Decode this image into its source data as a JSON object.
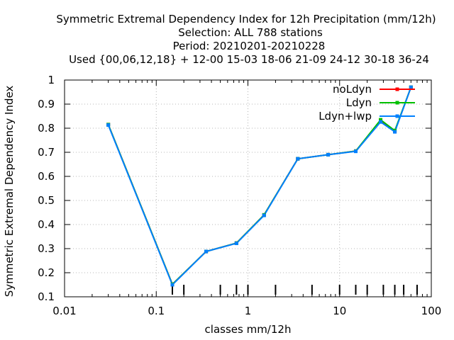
{
  "chart_data": {
    "type": "line",
    "title_lines": [
      "Symmetric Extremal Dependency Index  for 12h Precipitation (mm/12h)",
      "Selection: ALL    788 stations",
      "Period: 20210201-20210228",
      "Used {00,06,12,18} + 12-00 15-03 18-06 21-09 24-12 30-18 36-24"
    ],
    "xlabel": "classes mm/12h",
    "ylabel": "Symmetric Extremal Dependency Index",
    "xscale": "log",
    "xlim": [
      0.01,
      100
    ],
    "ylim": [
      0.1,
      1.0
    ],
    "xticks": [
      {
        "value": 0.01,
        "label": "0.01"
      },
      {
        "value": 0.1,
        "label": "0.1"
      },
      {
        "value": 1,
        "label": "1"
      },
      {
        "value": 10,
        "label": "10"
      },
      {
        "value": 100,
        "label": "100"
      }
    ],
    "yticks": [
      {
        "value": 0.1,
        "label": "0.1"
      },
      {
        "value": 0.2,
        "label": "0.2"
      },
      {
        "value": 0.3,
        "label": "0.3"
      },
      {
        "value": 0.4,
        "label": "0.4"
      },
      {
        "value": 0.5,
        "label": "0.5"
      },
      {
        "value": 0.6,
        "label": "0.6"
      },
      {
        "value": 0.7,
        "label": "0.7"
      },
      {
        "value": 0.8,
        "label": "0.8"
      },
      {
        "value": 0.9,
        "label": "0.9"
      },
      {
        "value": 1.0,
        "label": "1"
      }
    ],
    "class_marks": [
      0.15,
      0.2,
      0.5,
      0.75,
      1.0,
      2.0,
      5.0,
      10.0,
      15.0,
      20.0,
      30.0,
      40.0,
      50.0,
      70.0
    ],
    "grid": true,
    "legend_position": "top-right",
    "x": [
      0.03,
      0.15,
      0.35,
      0.75,
      1.5,
      3.5,
      7.5,
      15,
      28,
      40,
      60
    ],
    "series": [
      {
        "name": "noLdyn",
        "color": "#ff0000",
        "values": [
          0.815,
          0.152,
          0.288,
          0.323,
          0.44,
          0.673,
          0.69,
          0.705,
          0.832,
          0.787,
          0.97
        ]
      },
      {
        "name": "Ldyn",
        "color": "#00c000",
        "values": [
          0.815,
          0.152,
          0.288,
          0.323,
          0.44,
          0.673,
          0.69,
          0.705,
          0.835,
          0.79,
          0.97
        ]
      },
      {
        "name": "Ldyn+lwp",
        "color": "#0080ff",
        "values": [
          0.813,
          0.15,
          0.288,
          0.322,
          0.438,
          0.673,
          0.69,
          0.704,
          0.826,
          0.785,
          0.97
        ]
      }
    ]
  }
}
